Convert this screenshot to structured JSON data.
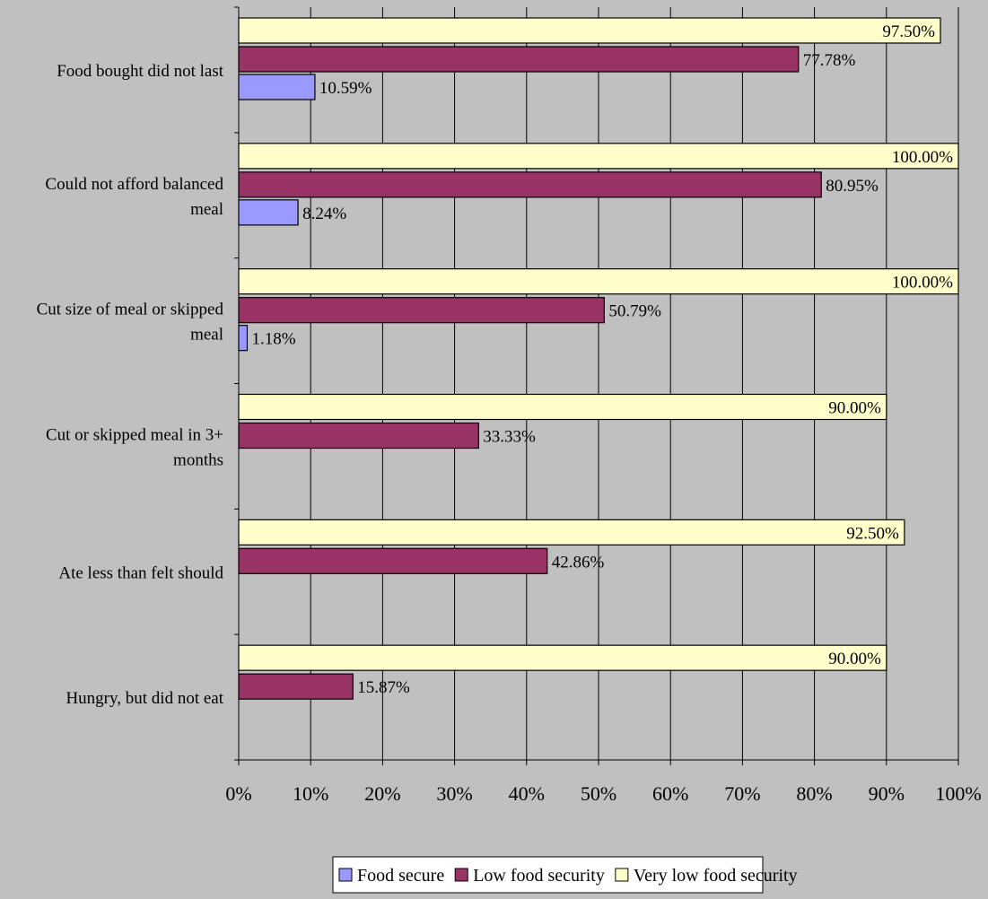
{
  "chart_data": {
    "type": "bar",
    "orientation": "horizontal",
    "categories": [
      [
        "Food bought did not last"
      ],
      [
        "Could not afford balanced",
        "meal"
      ],
      [
        "Cut size of meal or skipped",
        "meal"
      ],
      [
        "Cut or skipped meal in 3+",
        "months"
      ],
      [
        "Ate less than felt should"
      ],
      [
        "Hungry, but did not eat"
      ]
    ],
    "series": [
      {
        "name": "Food secure",
        "color": "#9999ff",
        "values": [
          10.59,
          8.24,
          1.18,
          null,
          null,
          null
        ],
        "labels": [
          "10.59%",
          "8.24%",
          "1.18%",
          "",
          "",
          ""
        ]
      },
      {
        "name": "Low food security",
        "color": "#993366",
        "values": [
          77.78,
          80.95,
          50.79,
          33.33,
          42.86,
          15.87
        ],
        "labels": [
          "77.78%",
          "80.95%",
          "50.79%",
          "33.33%",
          "42.86%",
          "15.87%"
        ]
      },
      {
        "name": "Very low food security",
        "color": "#ffffcc",
        "values": [
          97.5,
          100.0,
          100.0,
          90.0,
          92.5,
          90.0
        ],
        "labels": [
          "97.50%",
          "100.00%",
          "100.00%",
          "90.00%",
          "92.50%",
          "90.00%"
        ]
      }
    ],
    "xlim": [
      0,
      100
    ],
    "xticks": [
      "0%",
      "10%",
      "20%",
      "30%",
      "40%",
      "50%",
      "60%",
      "70%",
      "80%",
      "90%",
      "100%"
    ],
    "grid": "vertical",
    "legend_position": "bottom",
    "background_color": "#c0c0c0",
    "grid_color": "#000000"
  }
}
